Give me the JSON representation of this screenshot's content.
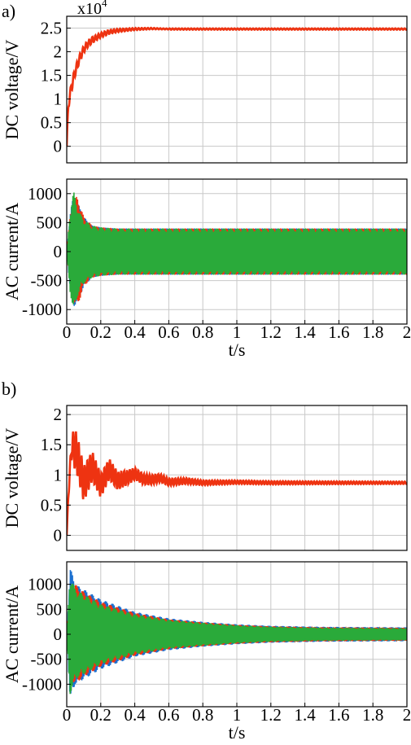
{
  "chart_data": [
    {
      "panel": "a)",
      "type": "line",
      "multiplier_base": "x10",
      "multiplier_exp": "4",
      "ylabel": "DC voltage/V",
      "xlabel": "",
      "xlim": [
        0,
        2
      ],
      "ylim": [
        -0.35,
        2.75
      ],
      "yticks": [
        0,
        0.5,
        1,
        1.5,
        2,
        2.5
      ],
      "ytick_labels": [
        "0",
        "0.5",
        "1",
        "1.5",
        "2",
        "2.5"
      ],
      "grid": true,
      "series": [
        {
          "color": "#ee3311",
          "x": [
            0,
            0.01,
            0.02,
            0.04,
            0.06,
            0.08,
            0.1,
            0.12,
            0.15,
            0.2,
            0.25,
            0.3,
            0.4,
            0.5,
            0.6,
            0.8,
            1.0,
            1.5,
            2.0
          ],
          "y": [
            0,
            0.9,
            1.1,
            1.45,
            1.7,
            1.9,
            2.05,
            2.15,
            2.25,
            2.35,
            2.42,
            2.45,
            2.48,
            2.49,
            2.48,
            2.48,
            2.48,
            2.48,
            2.48
          ]
        }
      ]
    },
    {
      "panel": "",
      "type": "line",
      "ylabel": "AC current/A",
      "xlabel": "t/s",
      "xlim": [
        0,
        2
      ],
      "ylim": [
        -1250,
        1250
      ],
      "yticks": [
        -1000,
        -500,
        0,
        500,
        1000
      ],
      "ytick_labels": [
        "-1000",
        "-500",
        "0",
        "500",
        "1000"
      ],
      "xticks": [
        0,
        0.2,
        0.4,
        0.6,
        0.8,
        1,
        1.2,
        1.4,
        1.6,
        1.8,
        2
      ],
      "xtick_labels": [
        "0",
        "0.2",
        "0.4",
        "0.6",
        "0.8",
        "1",
        "1.2",
        "1.4",
        "1.6",
        "1.8",
        "2"
      ],
      "grid": true,
      "series": [
        {
          "color": "#1a6fd0",
          "x": [
            0,
            0.02,
            0.04,
            0.06,
            0.08,
            0.1,
            0.15,
            0.2,
            0.3,
            0.5,
            1.0,
            2.0
          ],
          "envelope": [
            0,
            650,
            980,
            850,
            750,
            600,
            450,
            420,
            400,
            400,
            400,
            400
          ]
        },
        {
          "color": "#ee3311",
          "x": [
            0,
            0.02,
            0.04,
            0.06,
            0.08,
            0.1,
            0.15,
            0.2,
            0.3,
            0.5,
            1.0,
            2.0
          ],
          "envelope": [
            0,
            600,
            900,
            950,
            800,
            600,
            450,
            420,
            400,
            400,
            400,
            400
          ]
        },
        {
          "color": "#2aaa3a",
          "x": [
            0,
            0.02,
            0.04,
            0.06,
            0.08,
            0.1,
            0.15,
            0.2,
            0.3,
            0.5,
            1.0,
            2.0
          ],
          "envelope": [
            0,
            700,
            1050,
            800,
            650,
            550,
            450,
            420,
            400,
            400,
            400,
            400
          ]
        }
      ]
    },
    {
      "panel": "b)",
      "type": "line",
      "ylabel": "DC voltage/V",
      "xlabel": "",
      "xlim": [
        0,
        2
      ],
      "ylim": [
        -0.25,
        2.15
      ],
      "yticks": [
        0,
        0.5,
        1,
        1.5,
        2
      ],
      "ytick_labels": [
        "0",
        "0.5",
        "1",
        "1.5",
        "2"
      ],
      "grid": true,
      "series": [
        {
          "color": "#ee3311",
          "mean_x": [
            0,
            0.01,
            0.03,
            0.06,
            0.1,
            0.15,
            0.2,
            0.25,
            0.3,
            0.35,
            0.4,
            0.45,
            0.5,
            0.55,
            0.6,
            0.7,
            0.8,
            1.0,
            1.2,
            1.5,
            2.0
          ],
          "mean_y": [
            0,
            0.7,
            1.5,
            1.35,
            0.85,
            1.15,
            0.82,
            1.1,
            0.9,
            0.95,
            1.02,
            0.93,
            0.92,
            0.95,
            0.88,
            0.9,
            0.87,
            0.88,
            0.87,
            0.87,
            0.87
          ],
          "ripple_x": [
            0,
            0.05,
            0.1,
            0.2,
            0.4,
            0.6,
            0.8,
            1.0,
            2.0
          ],
          "ripple": [
            0,
            0.35,
            0.3,
            0.2,
            0.1,
            0.06,
            0.04,
            0.03,
            0.02
          ]
        }
      ]
    },
    {
      "panel": "",
      "type": "line",
      "ylabel": "AC current/A",
      "xlabel": "t/s",
      "xlim": [
        0,
        2
      ],
      "ylim": [
        -1450,
        1450
      ],
      "yticks": [
        -1000,
        -500,
        0,
        500,
        1000
      ],
      "ytick_labels": [
        "-1000",
        "-500",
        "0",
        "500",
        "1000"
      ],
      "xticks": [
        0,
        0.2,
        0.4,
        0.6,
        0.8,
        1,
        1.2,
        1.4,
        1.6,
        1.8,
        2
      ],
      "xtick_labels": [
        "0",
        "0.2",
        "0.4",
        "0.6",
        "0.8",
        "1",
        "1.2",
        "1.4",
        "1.6",
        "1.8",
        "2"
      ],
      "grid": true,
      "series": [
        {
          "color": "#1a6fd0",
          "x": [
            0,
            0.02,
            0.05,
            0.1,
            0.2,
            0.4,
            0.6,
            0.8,
            1.0,
            1.2,
            1.5,
            2.0
          ],
          "envelope": [
            0,
            1350,
            1000,
            900,
            700,
            450,
            320,
            250,
            200,
            170,
            150,
            140
          ]
        },
        {
          "color": "#ee3311",
          "x": [
            0,
            0.02,
            0.05,
            0.1,
            0.2,
            0.4,
            0.6,
            0.8,
            1.0,
            1.2,
            1.5,
            2.0
          ],
          "envelope": [
            0,
            900,
            1000,
            850,
            650,
            430,
            300,
            240,
            190,
            160,
            140,
            130
          ]
        },
        {
          "color": "#2aaa3a",
          "x": [
            0,
            0.02,
            0.05,
            0.1,
            0.2,
            0.4,
            0.6,
            0.8,
            1.0,
            1.2,
            1.5,
            2.0
          ],
          "envelope": [
            0,
            1200,
            900,
            800,
            600,
            400,
            290,
            230,
            180,
            150,
            130,
            120
          ]
        }
      ]
    }
  ]
}
